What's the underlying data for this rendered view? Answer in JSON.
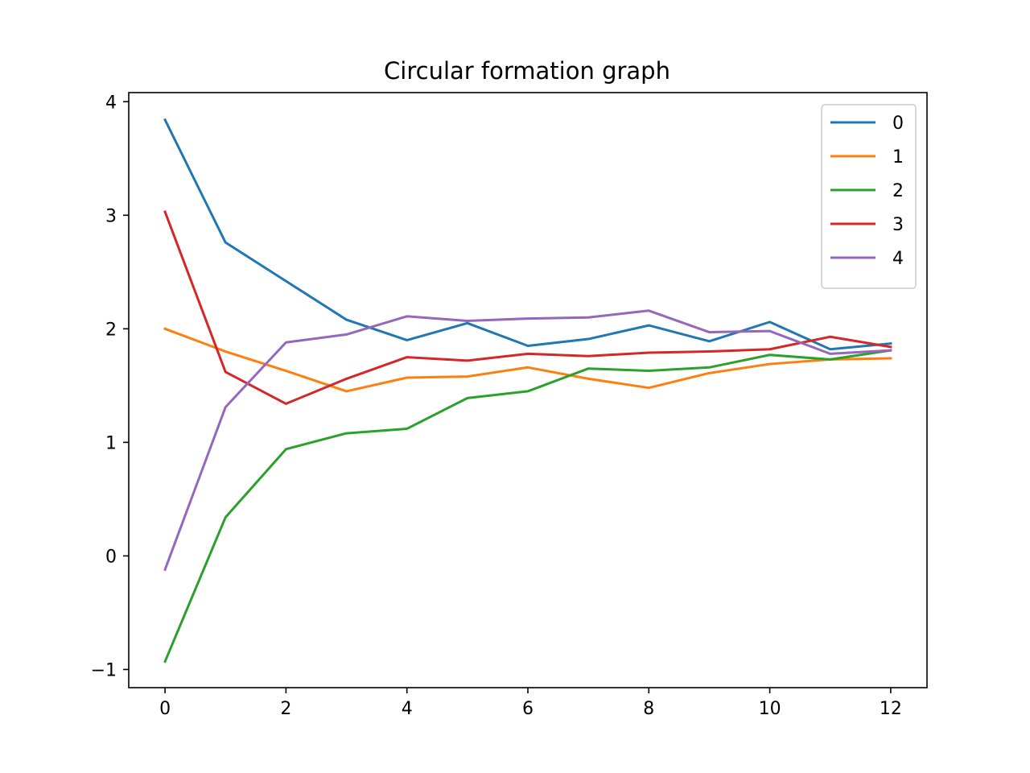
{
  "chart_data": {
    "type": "line",
    "title": "Circular formation graph",
    "xlabel": "",
    "ylabel": "",
    "xlim": [
      -0.6,
      12.6
    ],
    "ylim": [
      -1.16,
      4.08
    ],
    "x_ticks": [
      0,
      2,
      4,
      6,
      8,
      10,
      12
    ],
    "y_ticks": [
      -1,
      0,
      1,
      2,
      3,
      4
    ],
    "x_tick_labels": [
      "0",
      "2",
      "4",
      "6",
      "8",
      "10",
      "12"
    ],
    "y_tick_labels": [
      "−1",
      "0",
      "1",
      "2",
      "3",
      "4"
    ],
    "grid": false,
    "legend_position": "upper-right",
    "x": [
      0,
      1,
      2,
      3,
      4,
      5,
      6,
      7,
      8,
      9,
      10,
      11,
      12
    ],
    "series": [
      {
        "name": "0",
        "color": "#1f77b4",
        "values": [
          3.84,
          2.76,
          2.42,
          2.08,
          1.9,
          2.05,
          1.85,
          1.91,
          2.03,
          1.89,
          2.06,
          1.82,
          1.87
        ]
      },
      {
        "name": "1",
        "color": "#ff7f0e",
        "values": [
          2.0,
          1.8,
          1.63,
          1.45,
          1.57,
          1.58,
          1.66,
          1.56,
          1.48,
          1.61,
          1.69,
          1.73,
          1.74
        ]
      },
      {
        "name": "2",
        "color": "#2ca02c",
        "values": [
          -0.93,
          0.34,
          0.94,
          1.08,
          1.12,
          1.39,
          1.45,
          1.65,
          1.63,
          1.66,
          1.77,
          1.73,
          1.81
        ]
      },
      {
        "name": "3",
        "color": "#d62728",
        "values": [
          3.03,
          1.62,
          1.34,
          1.56,
          1.75,
          1.72,
          1.78,
          1.76,
          1.79,
          1.8,
          1.82,
          1.93,
          1.84
        ]
      },
      {
        "name": "4",
        "color": "#9467bd",
        "values": [
          -0.12,
          1.31,
          1.88,
          1.95,
          2.11,
          2.07,
          2.09,
          2.1,
          2.16,
          1.97,
          1.98,
          1.78,
          1.81
        ]
      }
    ]
  }
}
